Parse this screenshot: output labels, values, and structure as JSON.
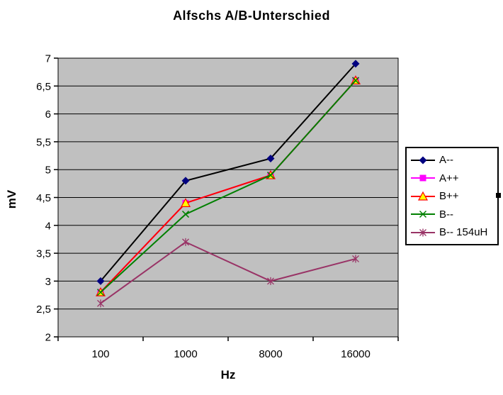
{
  "page": {
    "background": "#ffffff"
  },
  "chart_data": {
    "type": "line",
    "title": "Alfschs A/B-Unterschied",
    "xlabel": "Hz",
    "ylabel": "mV",
    "categories": [
      "100",
      "1000",
      "8000",
      "16000"
    ],
    "ylim": [
      2,
      7
    ],
    "ytick_step": 0.5,
    "ytick_labels": [
      "2",
      "2,5",
      "3",
      "3,5",
      "4",
      "4,5",
      "5",
      "5,5",
      "6",
      "6,5",
      "7"
    ],
    "grid": true,
    "legend_position": "right",
    "plot_background": "#c0c0c0",
    "axis_color": "#000000",
    "series": [
      {
        "name": "A--",
        "values": [
          3.0,
          4.8,
          5.2,
          6.9
        ],
        "line_color": "#000000",
        "marker": "diamond",
        "marker_color": "#000080"
      },
      {
        "name": "A++",
        "values": [
          2.8,
          4.4,
          4.9,
          6.6
        ],
        "line_color": "#ff00ff",
        "marker": "square",
        "marker_color": "#ff00ff"
      },
      {
        "name": "B++",
        "values": [
          2.8,
          4.4,
          4.9,
          6.6
        ],
        "line_color": "#ff0000",
        "marker": "triangle",
        "marker_color": "#ffff00",
        "marker_edge_color": "#ff0000"
      },
      {
        "name": "B--",
        "values": [
          2.8,
          4.2,
          4.9,
          6.6
        ],
        "line_color": "#008000",
        "marker": "x",
        "marker_color": "#008000"
      },
      {
        "name": "B-- 154uH",
        "values": [
          2.6,
          3.7,
          3.0,
          3.4
        ],
        "line_color": "#993366",
        "marker": "star",
        "marker_color": "#993366"
      }
    ]
  }
}
